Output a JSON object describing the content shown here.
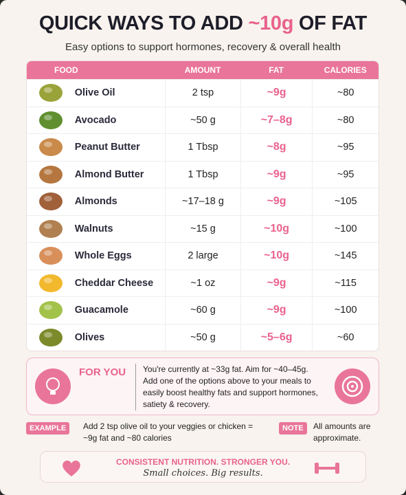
{
  "header": {
    "title_before": "QUICK WAYS TO ADD",
    "title_highlight": "~10g",
    "title_after": "OF FAT",
    "subtitle": "Easy options to support hormones, recovery & overall health"
  },
  "table": {
    "columns": [
      "FOOD",
      "AMOUNT",
      "FAT",
      "CALORIES"
    ],
    "rows": [
      [
        "Olive Oil",
        "2 tsp",
        "~9g",
        "~80"
      ],
      [
        "Avocado",
        "~50 g",
        "~7–8g",
        "~80"
      ],
      [
        "Peanut Butter",
        "1 Tbsp",
        "~8g",
        "~95"
      ],
      [
        "Almond Butter",
        "1 Tbsp",
        "~9g",
        "~95"
      ],
      [
        "Almonds",
        "~17–18 g",
        "~9g",
        "~105"
      ],
      [
        "Walnuts",
        "~15 g",
        "~10g",
        "~100"
      ],
      [
        "Whole Eggs",
        "2 large",
        "~10g",
        "~145"
      ],
      [
        "Cheddar Cheese",
        "~1 oz",
        "~9g",
        "~115"
      ],
      [
        "Guacamole",
        "~60 g",
        "~9g",
        "~100"
      ],
      [
        "Olives",
        "~50 g",
        "~5–6g",
        "~60"
      ]
    ]
  },
  "for_you": {
    "label": "FOR YOU",
    "text": "You're currently at ~33g fat. Aim for ~40–45g. Add one of the options above to your meals to easily boost healthy fats and support hormones, satiety & recovery."
  },
  "example": {
    "label": "EXAMPLE",
    "text": "Add 2 tsp olive oil to your veggies or chicken = ~9g fat and ~80 calories"
  },
  "note": {
    "label": "NOTE",
    "text": "All amounts are approximate."
  },
  "footer": {
    "tagline": "CONSISTENT NUTRITION. STRONGER YOU.",
    "script": "Small choices. Big results."
  }
}
